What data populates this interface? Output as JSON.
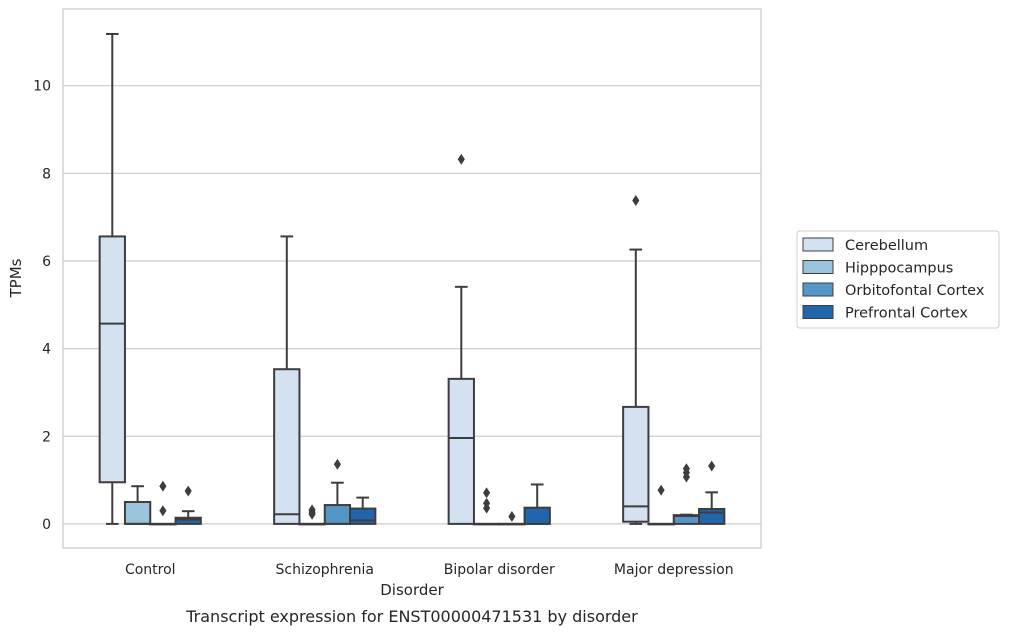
{
  "chart_data": {
    "type": "box",
    "caption": "Transcript expression for ENST00000471531 by disorder",
    "xlabel": "Disorder",
    "ylabel": "TPMs",
    "ylim": [
      -0.55,
      11.75
    ],
    "yticks": [
      0,
      2,
      4,
      6,
      8,
      10
    ],
    "grid": "horizontal",
    "legend_placement": "center-right",
    "categories": [
      "Control",
      "Schizophrenia",
      "Bipolar disorder",
      "Major depression"
    ],
    "colors": {
      "Cerebellum": "#d3e1f0",
      "Hipppocampus": "#9ac3dc",
      "Orbitofontal Cortex": "#5596c8",
      "Prefrontal Cortex": "#2166ab",
      "edge": "#3d3d3d",
      "grid": "#cccccc"
    },
    "series": [
      {
        "name": "Cerebellum",
        "boxes": [
          {
            "whislo": 0,
            "q1": 0.95,
            "med": 4.57,
            "q3": 6.56,
            "whishi": 11.18,
            "fliers": []
          },
          {
            "whislo": 0,
            "q1": 0,
            "med": 0.22,
            "q3": 3.53,
            "whishi": 6.56,
            "fliers": []
          },
          {
            "whislo": 0,
            "q1": 0,
            "med": 1.96,
            "q3": 3.31,
            "whishi": 5.41,
            "fliers": [
              8.32
            ]
          },
          {
            "whislo": 0,
            "q1": 0.05,
            "med": 0.4,
            "q3": 2.67,
            "whishi": 6.26,
            "fliers": [
              7.38
            ]
          }
        ]
      },
      {
        "name": "Hipppocampus",
        "boxes": [
          {
            "whislo": 0,
            "q1": 0,
            "med": 0,
            "q3": 0.5,
            "whishi": 0.86,
            "fliers": []
          },
          {
            "whislo": 0,
            "q1": 0,
            "med": 0,
            "q3": 0,
            "whishi": 0,
            "fliers": [
              0.22,
              0.27,
              0.32
            ]
          },
          {
            "whislo": 0,
            "q1": 0,
            "med": 0,
            "q3": 0,
            "whishi": 0,
            "fliers": [
              0.36,
              0.47,
              0.71
            ]
          },
          {
            "whislo": 0,
            "q1": 0,
            "med": 0,
            "q3": 0,
            "whishi": 0,
            "fliers": [
              0.77
            ]
          }
        ]
      },
      {
        "name": "Orbitofontal Cortex",
        "boxes": [
          {
            "whislo": 0,
            "q1": 0,
            "med": 0,
            "q3": 0,
            "whishi": 0,
            "fliers": [
              0.3,
              0.86
            ]
          },
          {
            "whislo": 0,
            "q1": 0,
            "med": 0,
            "q3": 0.43,
            "whishi": 0.94,
            "fliers": [
              1.36
            ]
          },
          {
            "whislo": 0,
            "q1": 0,
            "med": 0,
            "q3": 0,
            "whishi": 0,
            "fliers": [
              0.17
            ]
          },
          {
            "whislo": 0,
            "q1": 0,
            "med": 0.18,
            "q3": 0.2,
            "whishi": 0.21,
            "fliers": [
              1.07,
              1.17,
              1.26
            ]
          }
        ]
      },
      {
        "name": "Prefrontal Cortex",
        "boxes": [
          {
            "whislo": 0,
            "q1": 0,
            "med": 0.1,
            "q3": 0.14,
            "whishi": 0.29,
            "fliers": [
              0.75
            ]
          },
          {
            "whislo": 0,
            "q1": 0,
            "med": 0.08,
            "q3": 0.35,
            "whishi": 0.6,
            "fliers": []
          },
          {
            "whislo": 0,
            "q1": 0,
            "med": 0,
            "q3": 0.37,
            "whishi": 0.9,
            "fliers": []
          },
          {
            "whislo": 0,
            "q1": 0,
            "med": 0.26,
            "q3": 0.34,
            "whishi": 0.72,
            "fliers": [
              1.32
            ]
          }
        ]
      }
    ]
  }
}
